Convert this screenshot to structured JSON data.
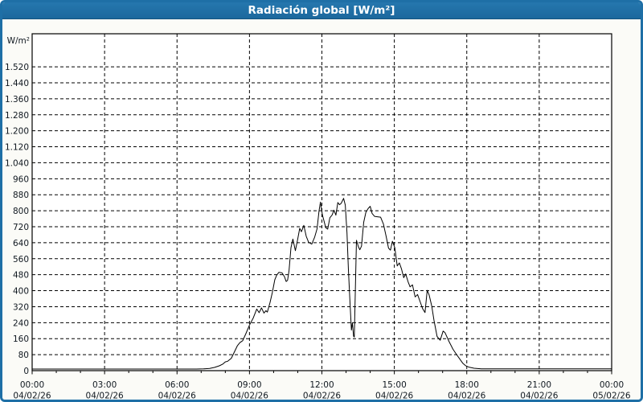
{
  "window": {
    "title": "Radiación global [W/m²]"
  },
  "chart_data": {
    "type": "line",
    "title": "Radiación global [W/m²]",
    "xlabel": "",
    "ylabel": "W/m²",
    "ylim": [
      0,
      1520
    ],
    "y_tick_step": 80,
    "y_tick_labels": [
      "0",
      "80",
      "160",
      "240",
      "320",
      "400",
      "480",
      "560",
      "640",
      "720",
      "800",
      "880",
      "960",
      "1.040",
      "1.120",
      "1.200",
      "1.280",
      "1.360",
      "1.440",
      "1.520"
    ],
    "y_tick_format": "thousands-dot",
    "xlim_hours": [
      0,
      24
    ],
    "x_minor_step_hours": 1,
    "grid": "dashed",
    "legend_position": "none",
    "x_major_ticks": [
      {
        "hour": 0,
        "time": "00:00",
        "date": "04/02/26"
      },
      {
        "hour": 3,
        "time": "03:00",
        "date": "04/02/26"
      },
      {
        "hour": 6,
        "time": "06:00",
        "date": "04/02/26"
      },
      {
        "hour": 9,
        "time": "09:00",
        "date": "04/02/26"
      },
      {
        "hour": 12,
        "time": "12:00",
        "date": "04/02/26"
      },
      {
        "hour": 15,
        "time": "15:00",
        "date": "04/02/26"
      },
      {
        "hour": 18,
        "time": "18:00",
        "date": "04/02/26"
      },
      {
        "hour": 21,
        "time": "21:00",
        "date": "04/02/26"
      },
      {
        "hour": 24,
        "time": "00:00",
        "date": "05/02/26"
      }
    ],
    "series": [
      {
        "name": "Radiación global",
        "unit": "W/m²",
        "color": "#000000",
        "points_hour_value": [
          [
            0,
            8
          ],
          [
            6.8,
            8
          ],
          [
            7.1,
            9
          ],
          [
            7.35,
            11
          ],
          [
            7.55,
            16
          ],
          [
            7.75,
            24
          ],
          [
            7.9,
            33
          ],
          [
            8.0,
            44
          ],
          [
            8.1,
            47
          ],
          [
            8.25,
            62
          ],
          [
            8.4,
            100
          ],
          [
            8.5,
            125
          ],
          [
            8.6,
            140
          ],
          [
            8.72,
            150
          ],
          [
            8.85,
            185
          ],
          [
            9.0,
            228
          ],
          [
            9.15,
            262
          ],
          [
            9.3,
            308
          ],
          [
            9.4,
            290
          ],
          [
            9.5,
            314
          ],
          [
            9.6,
            288
          ],
          [
            9.68,
            300
          ],
          [
            9.74,
            293
          ],
          [
            9.85,
            340
          ],
          [
            9.95,
            392
          ],
          [
            10.05,
            455
          ],
          [
            10.13,
            478
          ],
          [
            10.22,
            492
          ],
          [
            10.35,
            489
          ],
          [
            10.45,
            470
          ],
          [
            10.52,
            446
          ],
          [
            10.58,
            452
          ],
          [
            10.64,
            500
          ],
          [
            10.72,
            615
          ],
          [
            10.8,
            658
          ],
          [
            10.9,
            600
          ],
          [
            11.0,
            660
          ],
          [
            11.08,
            712
          ],
          [
            11.15,
            695
          ],
          [
            11.25,
            727
          ],
          [
            11.35,
            672
          ],
          [
            11.45,
            642
          ],
          [
            11.58,
            633
          ],
          [
            11.7,
            668
          ],
          [
            11.8,
            710
          ],
          [
            11.88,
            798
          ],
          [
            11.94,
            843
          ],
          [
            12.02,
            780
          ],
          [
            12.08,
            752
          ],
          [
            12.16,
            715
          ],
          [
            12.24,
            708
          ],
          [
            12.33,
            765
          ],
          [
            12.42,
            778
          ],
          [
            12.5,
            803
          ],
          [
            12.58,
            778
          ],
          [
            12.66,
            841
          ],
          [
            12.73,
            830
          ],
          [
            12.8,
            837
          ],
          [
            12.9,
            862
          ],
          [
            12.97,
            828
          ],
          [
            13.04,
            690
          ],
          [
            13.1,
            503
          ],
          [
            13.17,
            330
          ],
          [
            13.22,
            203
          ],
          [
            13.26,
            240
          ],
          [
            13.31,
            172
          ],
          [
            13.34,
            168
          ],
          [
            13.43,
            652
          ],
          [
            13.51,
            620
          ],
          [
            13.57,
            605
          ],
          [
            13.64,
            623
          ],
          [
            13.73,
            742
          ],
          [
            13.82,
            792
          ],
          [
            13.92,
            812
          ],
          [
            14.0,
            822
          ],
          [
            14.08,
            786
          ],
          [
            14.18,
            772
          ],
          [
            14.3,
            770
          ],
          [
            14.43,
            768
          ],
          [
            14.55,
            733
          ],
          [
            14.66,
            672
          ],
          [
            14.76,
            613
          ],
          [
            14.84,
            603
          ],
          [
            14.92,
            647
          ],
          [
            15.02,
            615
          ],
          [
            15.12,
            524
          ],
          [
            15.21,
            539
          ],
          [
            15.3,
            508
          ],
          [
            15.39,
            465
          ],
          [
            15.47,
            484
          ],
          [
            15.57,
            445
          ],
          [
            15.65,
            419
          ],
          [
            15.75,
            429
          ],
          [
            15.86,
            369
          ],
          [
            15.96,
            381
          ],
          [
            16.07,
            344
          ],
          [
            16.17,
            310
          ],
          [
            16.27,
            291
          ],
          [
            16.36,
            402
          ],
          [
            16.44,
            379
          ],
          [
            16.55,
            322
          ],
          [
            16.64,
            253
          ],
          [
            16.77,
            171
          ],
          [
            16.9,
            152
          ],
          [
            17.02,
            198
          ],
          [
            17.1,
            190
          ],
          [
            17.27,
            145
          ],
          [
            17.43,
            107
          ],
          [
            17.57,
            82
          ],
          [
            17.7,
            60
          ],
          [
            17.83,
            38
          ],
          [
            17.95,
            25
          ],
          [
            18.1,
            17
          ],
          [
            18.3,
            12
          ],
          [
            18.6,
            9
          ],
          [
            20.0,
            9
          ],
          [
            24.0,
            9
          ]
        ]
      }
    ],
    "colors": {
      "titlebar_bg": "#1e6fa6",
      "titlebar_text": "#ffffff",
      "window_border": "#1e6fa6",
      "body_bg": "#fbfbf7",
      "plot_bg": "#ffffff",
      "grid_color": "#000000",
      "line_color": "#000000",
      "label_color": "#101820"
    }
  }
}
